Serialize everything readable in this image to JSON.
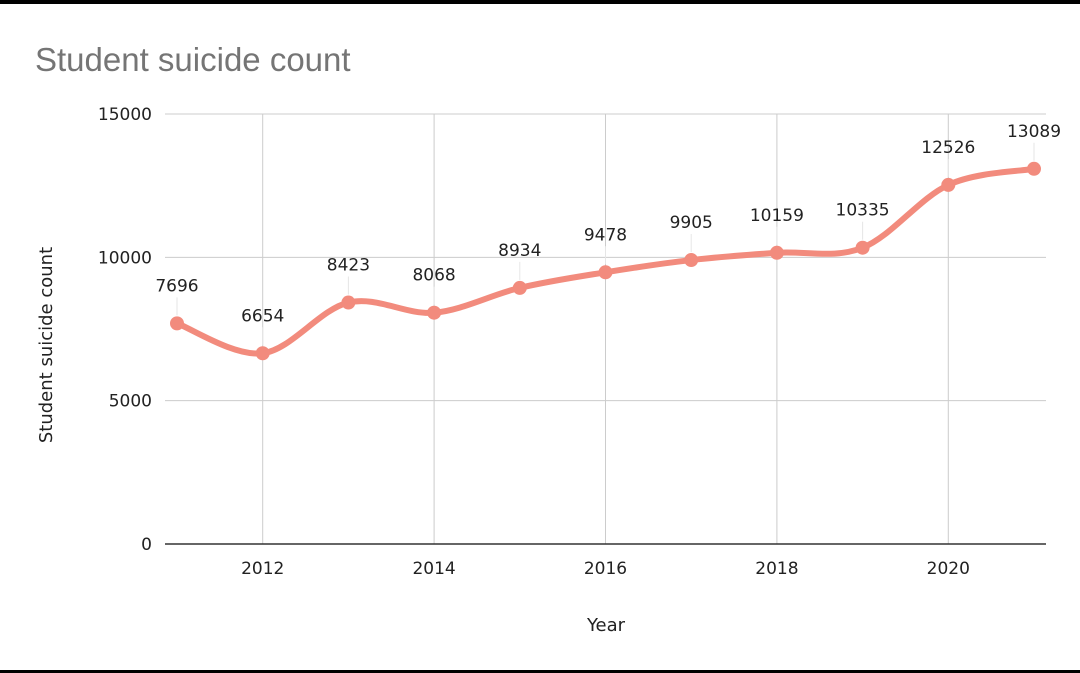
{
  "chart_data": {
    "type": "line",
    "title": "Student suicide count",
    "xlabel": "Year",
    "ylabel": "Student suicide count",
    "x": [
      2011,
      2012,
      2013,
      2014,
      2015,
      2016,
      2017,
      2018,
      2019,
      2020,
      2021
    ],
    "series": [
      {
        "values": [
          7696,
          6654,
          8423,
          8068,
          8934,
          9478,
          9905,
          10159,
          10335,
          12526,
          13089
        ],
        "color": "#f28b7d"
      }
    ],
    "xticks": [
      2012,
      2014,
      2016,
      2018,
      2020
    ],
    "yticks": [
      0,
      5000,
      10000,
      15000
    ],
    "xlim": [
      2011,
      2021
    ],
    "ylim": [
      0,
      15000
    ],
    "grid": true,
    "data_labels": true,
    "smooth": true
  }
}
